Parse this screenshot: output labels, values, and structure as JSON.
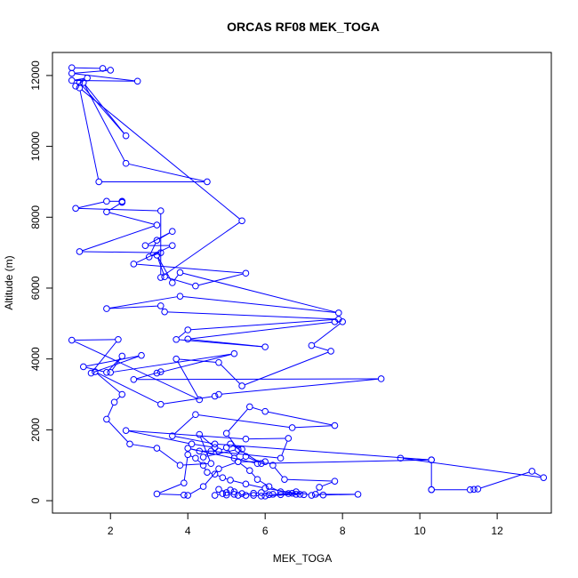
{
  "chart_data": {
    "type": "line",
    "title": "ORCAS RF08 MEK_TOGA",
    "xlabel": "MEK_TOGA",
    "ylabel": "Altitude (m)",
    "xlim": [
      0.5,
      13.4
    ],
    "ylim": [
      -350,
      12650
    ],
    "xticks": [
      2,
      4,
      6,
      8,
      10,
      12
    ],
    "yticks": [
      0,
      2000,
      4000,
      6000,
      8000,
      10000,
      12000
    ],
    "grid": false,
    "legend": "none",
    "line_color": "#0000ff",
    "marker": "open-circle",
    "points": [
      [
        1.0,
        12220
      ],
      [
        1.8,
        12200
      ],
      [
        2.0,
        12150
      ],
      [
        1.0,
        12060
      ],
      [
        2.7,
        11840
      ],
      [
        1.0,
        11860
      ],
      [
        1.4,
        11930
      ],
      [
        1.1,
        11700
      ],
      [
        1.2,
        11800
      ],
      [
        2.4,
        10300
      ],
      [
        1.3,
        11800
      ],
      [
        2.4,
        9520
      ],
      [
        4.5,
        9000
      ],
      [
        1.7,
        9000
      ],
      [
        1.2,
        11650
      ],
      [
        5.4,
        7900
      ],
      [
        3.3,
        6300
      ],
      [
        3.3,
        8180
      ],
      [
        1.1,
        8250
      ],
      [
        1.9,
        8450
      ],
      [
        2.3,
        8450
      ],
      [
        2.3,
        8430
      ],
      [
        2.3,
        8420
      ],
      [
        1.9,
        8150
      ],
      [
        3.2,
        7780
      ],
      [
        1.2,
        7030
      ],
      [
        3.3,
        7000
      ],
      [
        3.0,
        6880
      ],
      [
        3.2,
        7350
      ],
      [
        3.6,
        7600
      ],
      [
        2.9,
        7200
      ],
      [
        3.6,
        7200
      ],
      [
        2.6,
        6680
      ],
      [
        5.5,
        6420
      ],
      [
        4.2,
        6060
      ],
      [
        3.4,
        6320
      ],
      [
        3.2,
        6930
      ],
      [
        3.6,
        6150
      ],
      [
        3.8,
        6440
      ],
      [
        7.9,
        5300
      ],
      [
        3.8,
        5770
      ],
      [
        1.9,
        5420
      ],
      [
        3.3,
        5500
      ],
      [
        3.4,
        5330
      ],
      [
        7.9,
        5120
      ],
      [
        4.0,
        4820
      ],
      [
        3.7,
        4550
      ],
      [
        6.0,
        4340
      ],
      [
        4.0,
        4560
      ],
      [
        7.8,
        5050
      ],
      [
        8.0,
        5050
      ],
      [
        7.2,
        4380
      ],
      [
        7.7,
        4220
      ],
      [
        5.4,
        3240
      ],
      [
        4.8,
        3900
      ],
      [
        3.7,
        4000
      ],
      [
        4.3,
        2850
      ],
      [
        1.0,
        4530
      ],
      [
        2.2,
        4550
      ],
      [
        1.5,
        3600
      ],
      [
        2.8,
        4100
      ],
      [
        1.3,
        3780
      ],
      [
        1.9,
        3620
      ],
      [
        2.3,
        4080
      ],
      [
        2.0,
        3620
      ],
      [
        5.2,
        4150
      ],
      [
        3.2,
        3600
      ],
      [
        3.3,
        3640
      ],
      [
        2.6,
        3420
      ],
      [
        9.0,
        3440
      ],
      [
        4.8,
        3000
      ],
      [
        4.7,
        2950
      ],
      [
        3.3,
        2720
      ],
      [
        1.6,
        3640
      ],
      [
        2.3,
        3000
      ],
      [
        2.1,
        2780
      ],
      [
        1.9,
        2300
      ],
      [
        2.5,
        1600
      ],
      [
        3.2,
        1480
      ],
      [
        3.8,
        1000
      ],
      [
        4.6,
        1050
      ],
      [
        4.3,
        1870
      ],
      [
        4.7,
        1500
      ],
      [
        4.1,
        1600
      ],
      [
        2.4,
        1980
      ],
      [
        5.5,
        1740
      ],
      [
        6.6,
        1760
      ],
      [
        6.4,
        1200
      ],
      [
        4.6,
        1400
      ],
      [
        4.4,
        1230
      ],
      [
        5.3,
        1450
      ],
      [
        5.0,
        1900
      ],
      [
        5.6,
        2650
      ],
      [
        6.0,
        2520
      ],
      [
        7.8,
        2120
      ],
      [
        6.7,
        2060
      ],
      [
        4.2,
        2430
      ],
      [
        3.6,
        1830
      ],
      [
        4.7,
        1600
      ],
      [
        10.3,
        1150
      ],
      [
        9.5,
        1200
      ],
      [
        13.2,
        650
      ],
      [
        12.9,
        830
      ],
      [
        11.5,
        330
      ],
      [
        11.4,
        320
      ],
      [
        11.3,
        310
      ],
      [
        10.3,
        310
      ],
      [
        10.3,
        310
      ],
      [
        10.3,
        1150
      ],
      [
        5.8,
        1050
      ],
      [
        4.0,
        1480
      ],
      [
        4.3,
        1400
      ],
      [
        4.8,
        1400
      ],
      [
        5.0,
        1500
      ],
      [
        5.2,
        1200
      ],
      [
        5.4,
        1450
      ],
      [
        5.1,
        1600
      ],
      [
        5.9,
        1050
      ],
      [
        5.5,
        1250
      ],
      [
        5.3,
        1100
      ],
      [
        6.0,
        1100
      ],
      [
        6.2,
        1000
      ],
      [
        6.5,
        600
      ],
      [
        7.8,
        550
      ],
      [
        7.4,
        380
      ],
      [
        7.3,
        180
      ],
      [
        8.4,
        180
      ],
      [
        7.5,
        160
      ],
      [
        7.2,
        150
      ],
      [
        6.8,
        250
      ],
      [
        6.9,
        180
      ],
      [
        6.6,
        200
      ],
      [
        6.1,
        170
      ],
      [
        5.9,
        130
      ],
      [
        5.7,
        150
      ],
      [
        5.5,
        150
      ],
      [
        5.4,
        200
      ],
      [
        5.2,
        250
      ],
      [
        5.1,
        300
      ],
      [
        5.0,
        230
      ],
      [
        4.8,
        320
      ],
      [
        4.7,
        150
      ],
      [
        4.9,
        200
      ],
      [
        5.0,
        160
      ],
      [
        5.2,
        180
      ],
      [
        5.3,
        150
      ],
      [
        5.7,
        210
      ],
      [
        5.9,
        230
      ],
      [
        6.2,
        180
      ],
      [
        6.4,
        170
      ],
      [
        6.7,
        210
      ],
      [
        7.0,
        170
      ],
      [
        6.0,
        350
      ],
      [
        5.5,
        470
      ],
      [
        5.1,
        580
      ],
      [
        4.9,
        650
      ],
      [
        4.7,
        750
      ],
      [
        4.5,
        800
      ],
      [
        4.4,
        1000
      ],
      [
        4.2,
        1200
      ],
      [
        4.0,
        1300
      ],
      [
        3.9,
        500
      ],
      [
        3.2,
        190
      ],
      [
        3.9,
        160
      ],
      [
        4.0,
        150
      ],
      [
        4.4,
        400
      ],
      [
        4.8,
        900
      ],
      [
        5.3,
        1100
      ],
      [
        5.6,
        850
      ],
      [
        5.8,
        600
      ],
      [
        6.1,
        400
      ],
      [
        6.4,
        250
      ],
      [
        6.8,
        180
      ],
      [
        6.0,
        130
      ]
    ]
  }
}
